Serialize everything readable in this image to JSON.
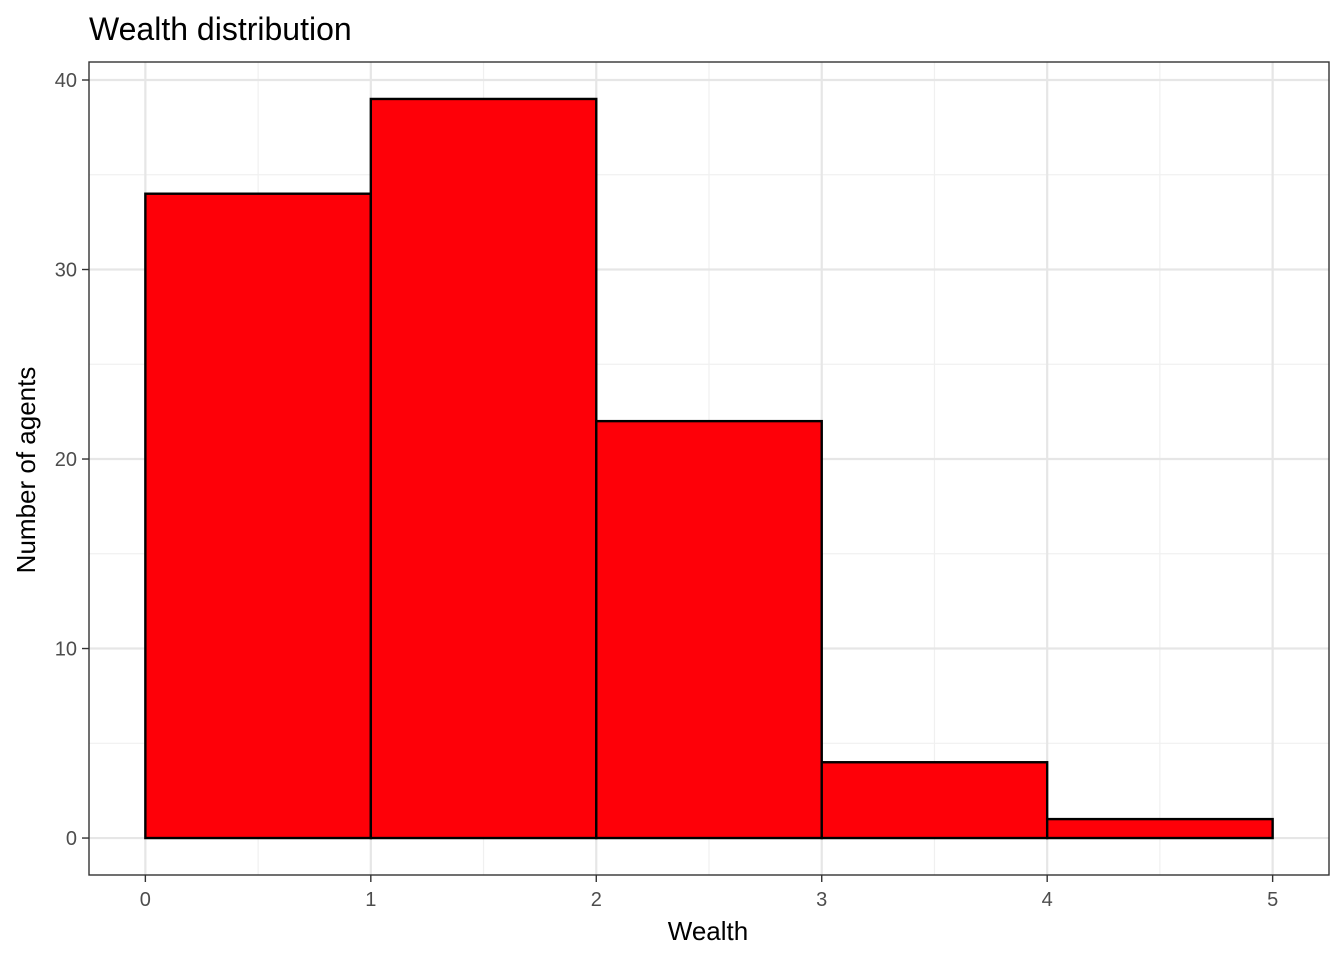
{
  "chart_data": {
    "type": "bar",
    "title": "Wealth distribution",
    "xlabel": "Wealth",
    "ylabel": "Number of agents",
    "bins": [
      {
        "x0": 0,
        "x1": 1,
        "count": 34
      },
      {
        "x0": 1,
        "x1": 2,
        "count": 39
      },
      {
        "x0": 2,
        "x1": 3,
        "count": 22
      },
      {
        "x0": 3,
        "x1": 4,
        "count": 4
      },
      {
        "x0": 4,
        "x1": 5,
        "count": 1
      }
    ],
    "x_ticks": [
      0,
      1,
      2,
      3,
      4,
      5
    ],
    "y_ticks": [
      0,
      10,
      20,
      30,
      40
    ],
    "xlim": [
      -0.25,
      5.25
    ],
    "ylim": [
      -1.95,
      40.95
    ],
    "grid": true,
    "bar_fill": "#fe0008",
    "bar_outline": "#000000",
    "theme": "bw"
  }
}
